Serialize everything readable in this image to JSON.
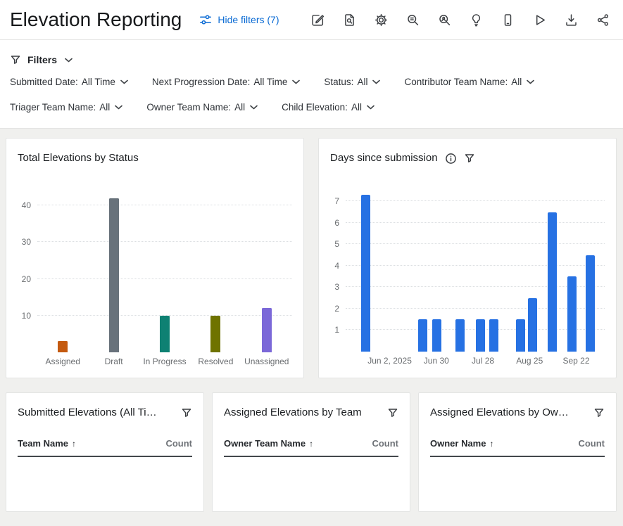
{
  "header": {
    "title": "Elevation Reporting",
    "hide_filters_label": "Hide filters (7)",
    "toolbar_icons": [
      "edit-icon",
      "page-search-icon",
      "gear-icon",
      "search-insights-icon",
      "search-user-icon",
      "lightbulb-icon",
      "mobile-icon",
      "play-icon",
      "download-icon",
      "share-icon"
    ]
  },
  "filters": {
    "label": "Filters",
    "items": [
      {
        "label": "Submitted Date:",
        "value": "All Time"
      },
      {
        "label": "Next Progression Date:",
        "value": "All Time"
      },
      {
        "label": "Status:",
        "value": "All"
      },
      {
        "label": "Contributor Team Name:",
        "value": "All"
      },
      {
        "label": "Triager Team Name:",
        "value": "All"
      },
      {
        "label": "Owner Team Name:",
        "value": "All"
      },
      {
        "label": "Child Elevation:",
        "value": "All"
      }
    ]
  },
  "chart_data": [
    {
      "type": "bar",
      "title": "Total Elevations by Status",
      "categories": [
        "Assigned",
        "Draft",
        "In Progress",
        "Resolved",
        "Unassigned"
      ],
      "values": [
        3,
        42,
        10,
        10,
        12
      ],
      "colors": [
        "#c45a10",
        "#68727b",
        "#0e8173",
        "#6f7300",
        "#7b68d8"
      ],
      "yticks": [
        10,
        20,
        30,
        40
      ],
      "ylim": [
        0,
        46
      ],
      "grid": "dotted-horizontal",
      "legend": "none"
    },
    {
      "type": "bar",
      "title": "Days since submission",
      "color": "#2671e3",
      "yticks": [
        1,
        2,
        3,
        4,
        5,
        6,
        7
      ],
      "ylim": [
        0,
        7.7
      ],
      "grid": "dotted-horizontal",
      "legend": "none",
      "x_ticks": [
        {
          "label": "Jun 2, 2025",
          "pos": 0.17
        },
        {
          "label": "Jun 30",
          "pos": 0.35
        },
        {
          "label": "Jul 28",
          "pos": 0.53
        },
        {
          "label": "Aug 25",
          "pos": 0.71
        },
        {
          "label": "Sep 22",
          "pos": 0.89
        }
      ],
      "bars": [
        {
          "pos": 0.075,
          "value": 7.3
        },
        {
          "pos": 0.295,
          "value": 1.5
        },
        {
          "pos": 0.35,
          "value": 1.5
        },
        {
          "pos": 0.44,
          "value": 1.5
        },
        {
          "pos": 0.52,
          "value": 1.5
        },
        {
          "pos": 0.572,
          "value": 1.5
        },
        {
          "pos": 0.675,
          "value": 1.5
        },
        {
          "pos": 0.72,
          "value": 2.5
        },
        {
          "pos": 0.796,
          "value": 6.5
        },
        {
          "pos": 0.873,
          "value": 3.5
        },
        {
          "pos": 0.942,
          "value": 4.5
        }
      ]
    }
  ],
  "bottom_cards": [
    {
      "title": "Submitted Elevations (All Ti…",
      "col1": "Team Name",
      "sort": "↑",
      "col2": "Count"
    },
    {
      "title": "Assigned Elevations by Team",
      "col1": "Owner Team Name",
      "sort": "↑",
      "col2": "Count"
    },
    {
      "title": "Assigned Elevations by Ow…",
      "col1": "Owner Name",
      "sort": "↑",
      "col2": "Count"
    }
  ]
}
